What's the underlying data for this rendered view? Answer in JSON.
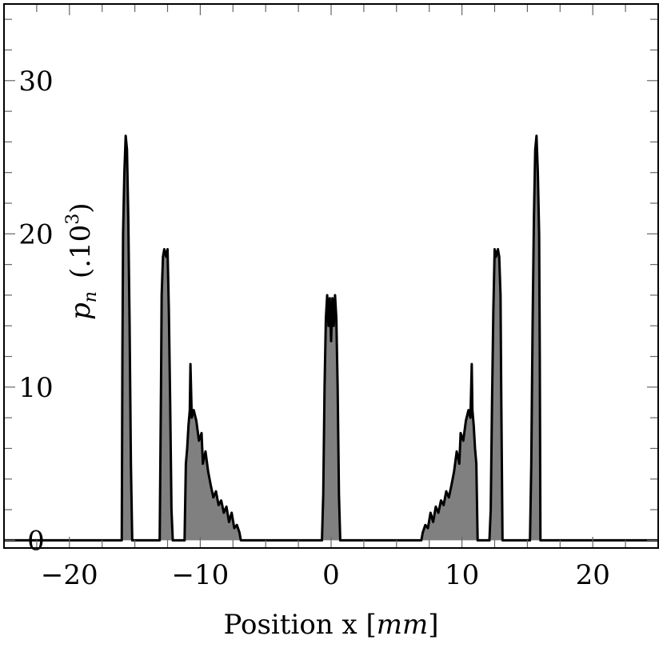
{
  "chart_data": {
    "type": "area",
    "xlabel_text": "Position x ",
    "xlabel_unit": "mm",
    "ylabel_symbol": "p",
    "ylabel_subscript": "n",
    "ylabel_factor": "(.10",
    "ylabel_exponent": "3",
    "ylabel_close": ")",
    "xlim": [
      -25,
      25
    ],
    "ylim": [
      -0.5,
      35
    ],
    "xticks": [
      -20,
      -10,
      0,
      10,
      20
    ],
    "xtick_labels": [
      "−20",
      "−10",
      "0",
      "10",
      "20"
    ],
    "yticks": [
      0,
      10,
      20,
      30
    ],
    "ytick_labels": [
      "0",
      "10",
      "20",
      "30"
    ],
    "grid": false,
    "fill_color": "#808080",
    "line_color": "#000000",
    "series": [
      {
        "values": [
          [
            -16.0,
            0
          ],
          [
            -15.95,
            12
          ],
          [
            -15.9,
            20
          ],
          [
            -15.8,
            24
          ],
          [
            -15.7,
            26.4
          ],
          [
            -15.6,
            25.5
          ],
          [
            -15.5,
            21
          ],
          [
            -15.4,
            14
          ],
          [
            -15.3,
            5
          ],
          [
            -15.2,
            0
          ],
          [
            -13.1,
            0
          ],
          [
            -13.0,
            10
          ],
          [
            -12.95,
            16
          ],
          [
            -12.85,
            18.5
          ],
          [
            -12.75,
            19.0
          ],
          [
            -12.6,
            18.5
          ],
          [
            -12.5,
            19.0
          ],
          [
            -12.4,
            15
          ],
          [
            -12.3,
            9
          ],
          [
            -12.2,
            2
          ],
          [
            -12.1,
            0
          ],
          [
            -11.2,
            0
          ],
          [
            -11.1,
            5
          ],
          [
            -11.0,
            6
          ],
          [
            -10.9,
            7.5
          ],
          [
            -10.8,
            8.5
          ],
          [
            -10.75,
            11.5
          ],
          [
            -10.65,
            8
          ],
          [
            -10.5,
            8.5
          ],
          [
            -10.3,
            7.8
          ],
          [
            -10.1,
            6.5
          ],
          [
            -9.9,
            7.0
          ],
          [
            -9.8,
            5
          ],
          [
            -9.6,
            5.8
          ],
          [
            -9.4,
            4.5
          ],
          [
            -9.2,
            3.6
          ],
          [
            -9.0,
            2.8
          ],
          [
            -8.8,
            3.2
          ],
          [
            -8.6,
            2.3
          ],
          [
            -8.4,
            2.6
          ],
          [
            -8.2,
            1.8
          ],
          [
            -8.0,
            2.2
          ],
          [
            -7.8,
            1.2
          ],
          [
            -7.6,
            1.8
          ],
          [
            -7.4,
            0.8
          ],
          [
            -7.2,
            1.0
          ],
          [
            -7.0,
            0.5
          ],
          [
            -6.9,
            0
          ],
          [
            -0.7,
            0
          ],
          [
            -0.6,
            3
          ],
          [
            -0.5,
            10
          ],
          [
            -0.4,
            14.5
          ],
          [
            -0.3,
            16
          ],
          [
            -0.2,
            14
          ],
          [
            -0.1,
            15.8
          ],
          [
            0.0,
            13
          ],
          [
            0.1,
            15.8
          ],
          [
            0.2,
            14
          ],
          [
            0.3,
            16
          ],
          [
            0.4,
            14.5
          ],
          [
            0.5,
            10
          ],
          [
            0.6,
            3
          ],
          [
            0.7,
            0
          ],
          [
            6.9,
            0
          ],
          [
            7.0,
            0.5
          ],
          [
            7.2,
            1.0
          ],
          [
            7.4,
            0.8
          ],
          [
            7.6,
            1.8
          ],
          [
            7.8,
            1.2
          ],
          [
            8.0,
            2.2
          ],
          [
            8.2,
            1.8
          ],
          [
            8.4,
            2.6
          ],
          [
            8.6,
            2.3
          ],
          [
            8.8,
            3.2
          ],
          [
            9.0,
            2.8
          ],
          [
            9.2,
            3.6
          ],
          [
            9.4,
            4.5
          ],
          [
            9.6,
            5.8
          ],
          [
            9.8,
            5
          ],
          [
            9.9,
            7.0
          ],
          [
            10.1,
            6.5
          ],
          [
            10.3,
            7.8
          ],
          [
            10.5,
            8.5
          ],
          [
            10.65,
            8
          ],
          [
            10.75,
            11.5
          ],
          [
            10.8,
            8.5
          ],
          [
            10.9,
            7.5
          ],
          [
            11.0,
            6
          ],
          [
            11.1,
            5
          ],
          [
            11.2,
            0
          ],
          [
            12.1,
            0
          ],
          [
            12.2,
            2
          ],
          [
            12.3,
            9
          ],
          [
            12.4,
            15
          ],
          [
            12.5,
            19.0
          ],
          [
            12.6,
            18.5
          ],
          [
            12.75,
            19.0
          ],
          [
            12.85,
            18.5
          ],
          [
            12.95,
            16
          ],
          [
            13.0,
            10
          ],
          [
            13.1,
            0
          ],
          [
            15.2,
            0
          ],
          [
            15.3,
            5
          ],
          [
            15.4,
            14
          ],
          [
            15.5,
            21
          ],
          [
            15.6,
            25.5
          ],
          [
            15.7,
            26.4
          ],
          [
            15.8,
            24
          ],
          [
            15.9,
            20
          ],
          [
            15.95,
            12
          ],
          [
            16.0,
            0
          ]
        ]
      }
    ]
  }
}
